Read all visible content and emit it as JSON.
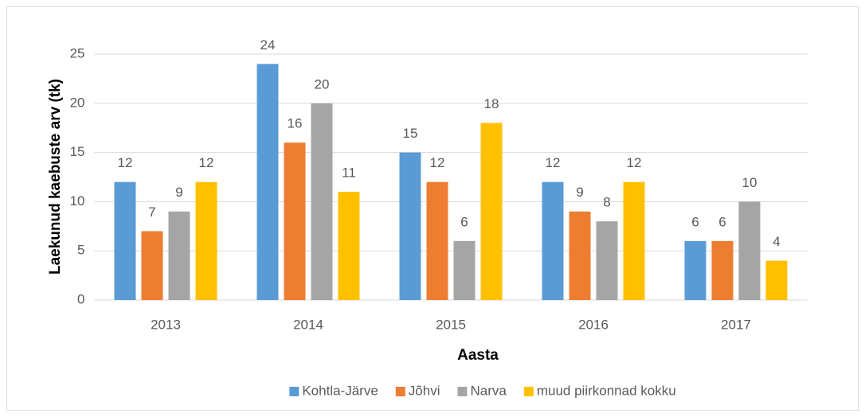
{
  "chart_data": {
    "type": "bar",
    "categories": [
      "2013",
      "2014",
      "2015",
      "2016",
      "2017"
    ],
    "series": [
      {
        "name": "Kohtla-Järve",
        "color": "#5b9bd5",
        "values": [
          12,
          24,
          15,
          12,
          6
        ]
      },
      {
        "name": "Jõhvi",
        "color": "#ed7d31",
        "values": [
          7,
          16,
          12,
          9,
          6
        ]
      },
      {
        "name": "Narva",
        "color": "#a5a5a5",
        "values": [
          9,
          20,
          6,
          8,
          10
        ]
      },
      {
        "name": "muud piirkonnad kokku",
        "color": "#ffc000",
        "values": [
          12,
          11,
          18,
          12,
          4
        ]
      }
    ],
    "x_label": "Aasta",
    "y_label": "Laekunud kaebuste arv (tk)",
    "ylim": [
      0,
      25
    ],
    "yticks": [
      0,
      5,
      10,
      15,
      20,
      25
    ],
    "grid": true,
    "legend": "bottom"
  }
}
